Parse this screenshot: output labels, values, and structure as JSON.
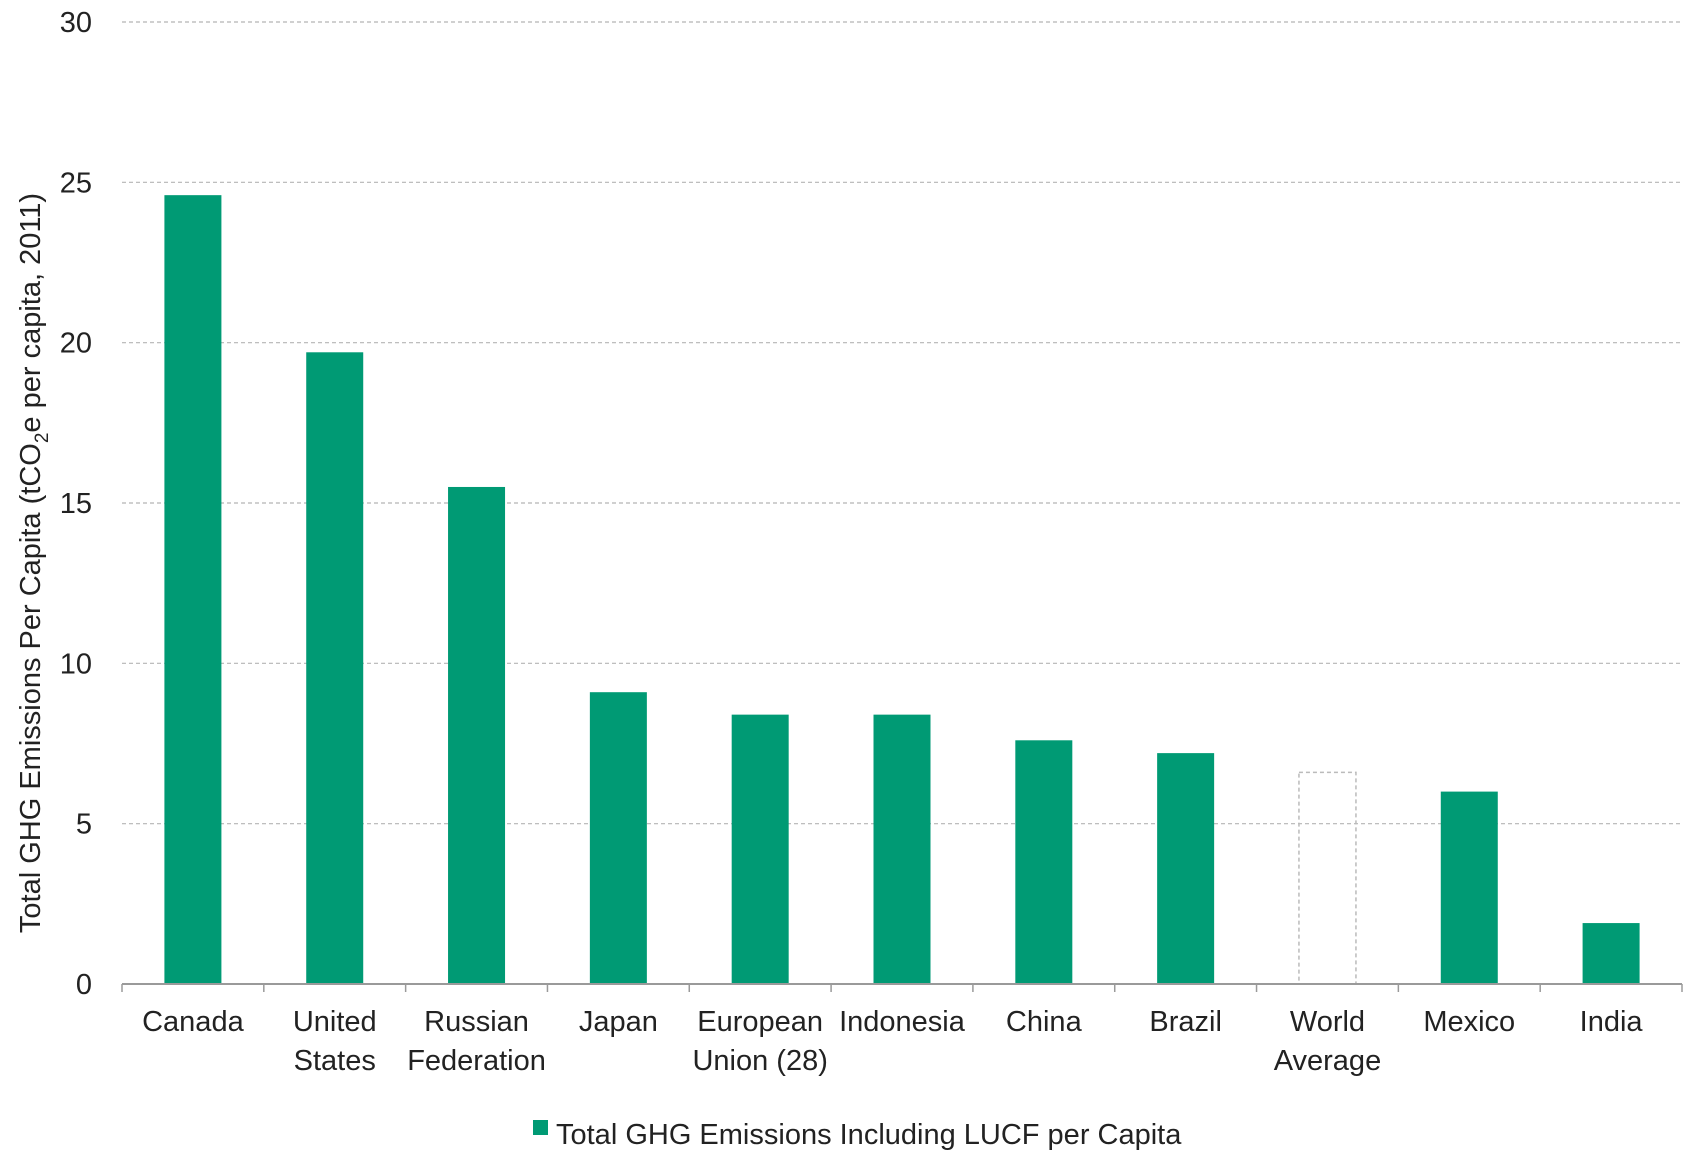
{
  "chart_data": {
    "type": "bar",
    "title": "",
    "xlabel": "",
    "ylabel": {
      "prefix": "Total GHG Emissions Per Capita (tCO",
      "subscript": "2",
      "suffix": "e per capita, 2011)"
    },
    "ylim": [
      0,
      30
    ],
    "yticks": [
      0,
      5,
      10,
      15,
      20,
      25,
      30
    ],
    "grid": true,
    "categories": [
      [
        "Canada"
      ],
      [
        "United",
        "States"
      ],
      [
        "Russian",
        "Federation"
      ],
      [
        "Japan"
      ],
      [
        "European",
        "Union (28)"
      ],
      [
        "Indonesia"
      ],
      [
        "China"
      ],
      [
        "Brazil"
      ],
      [
        "World",
        "Average"
      ],
      [
        "Mexico"
      ],
      [
        "India"
      ]
    ],
    "series": [
      {
        "name": "Total GHG Emissions Including LUCF per Capita",
        "color": "#009a74",
        "values": [
          24.6,
          19.7,
          15.5,
          9.1,
          8.4,
          8.4,
          7.6,
          7.2,
          6.6,
          6.0,
          1.9
        ],
        "outline_only": [
          false,
          false,
          false,
          false,
          false,
          false,
          false,
          false,
          true,
          false,
          false
        ]
      }
    ],
    "outline_color": "#bbbbbb",
    "legend_position": "bottom-center"
  }
}
